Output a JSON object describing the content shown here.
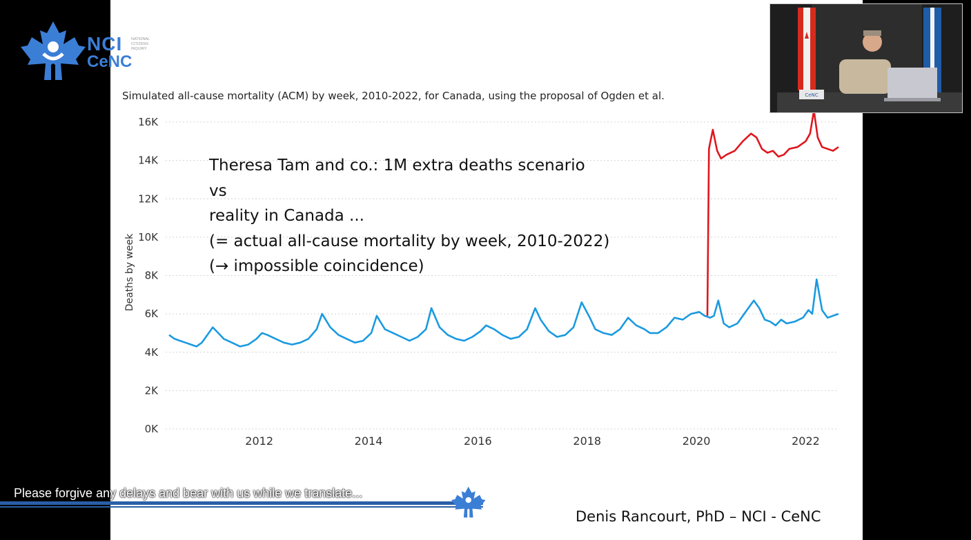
{
  "logo": {
    "nci": "NCI",
    "cenc": "CeNC",
    "small_lines": [
      "NATIONAL",
      "CITIZENS",
      "INQUIRY"
    ]
  },
  "chart_title": "Simulated all-cause mortality (ACM) by week, 2010-2022, for Canada, using the proposal of Ogden et al.",
  "annotation_lines": [
    "Theresa Tam and co.: 1M extra deaths scenario",
    "vs",
    "reality in Canada ...",
    "(= actual all-cause mortality by week, 2010-2022)",
    "(→ impossible coincidence)"
  ],
  "presenter": "Denis Rancourt, PhD  –  NCI - CeNC",
  "ticker_text": "Please forgive any delays and bear with us while we translate...",
  "video": {
    "nameplate": "CeNC"
  },
  "colors": {
    "actual": "#1a9ae0",
    "scenario": "#e0161e",
    "accent": "#3b7ed6"
  },
  "chart_data": {
    "type": "line",
    "title": "Simulated all-cause mortality (ACM) by week, 2010-2022, for Canada, using the proposal of Ogden et al.",
    "xlabel": "",
    "ylabel": "Deaths by week",
    "ylim": [
      0,
      16000
    ],
    "xlim": [
      2010.35,
      2022.6
    ],
    "yticks": [
      0,
      2000,
      4000,
      6000,
      8000,
      10000,
      12000,
      14000,
      16000
    ],
    "ytick_labels": [
      "0K",
      "2K",
      "4K",
      "6K",
      "8K",
      "10K",
      "12K",
      "14K",
      "16K"
    ],
    "xticks": [
      2012,
      2014,
      2016,
      2018,
      2020,
      2022
    ],
    "xtick_labels": [
      "2012",
      "2014",
      "2016",
      "2018",
      "2020",
      "2022"
    ],
    "grid": true,
    "series": [
      {
        "color": "#1a9ae0",
        "x": [
          2010.35,
          2010.45,
          2010.55,
          2010.65,
          2010.75,
          2010.85,
          2010.95,
          2011.05,
          2011.15,
          2011.25,
          2011.35,
          2011.5,
          2011.65,
          2011.8,
          2011.95,
          2012.05,
          2012.15,
          2012.3,
          2012.45,
          2012.6,
          2012.75,
          2012.9,
          2013.05,
          2013.15,
          2013.3,
          2013.45,
          2013.6,
          2013.75,
          2013.9,
          2014.05,
          2014.15,
          2014.3,
          2014.45,
          2014.6,
          2014.75,
          2014.9,
          2015.05,
          2015.15,
          2015.3,
          2015.45,
          2015.6,
          2015.75,
          2015.9,
          2016.05,
          2016.15,
          2016.3,
          2016.45,
          2016.6,
          2016.75,
          2016.9,
          2017.05,
          2017.15,
          2017.3,
          2017.45,
          2017.6,
          2017.75,
          2017.9,
          2018.05,
          2018.15,
          2018.3,
          2018.45,
          2018.6,
          2018.75,
          2018.9,
          2019.05,
          2019.15,
          2019.3,
          2019.45,
          2019.6,
          2019.75,
          2019.9,
          2020.05,
          2020.15,
          2020.25,
          2020.32,
          2020.4,
          2020.5,
          2020.6,
          2020.75,
          2020.9,
          2021.05,
          2021.15,
          2021.25,
          2021.35,
          2021.45,
          2021.55,
          2021.65,
          2021.8,
          2021.95,
          2022.05,
          2022.12,
          2022.2,
          2022.3,
          2022.4,
          2022.5,
          2022.6
        ],
        "y": [
          4900,
          4700,
          4600,
          4500,
          4400,
          4300,
          4500,
          4900,
          5300,
          5000,
          4700,
          4500,
          4300,
          4400,
          4700,
          5000,
          4900,
          4700,
          4500,
          4400,
          4500,
          4700,
          5200,
          6000,
          5300,
          4900,
          4700,
          4500,
          4600,
          5000,
          5900,
          5200,
          5000,
          4800,
          4600,
          4800,
          5200,
          6300,
          5300,
          4900,
          4700,
          4600,
          4800,
          5100,
          5400,
          5200,
          4900,
          4700,
          4800,
          5200,
          6300,
          5700,
          5100,
          4800,
          4900,
          5300,
          6600,
          5800,
          5200,
          5000,
          4900,
          5200,
          5800,
          5400,
          5200,
          5000,
          5000,
          5300,
          5800,
          5700,
          6000,
          6100,
          5900,
          5800,
          5900,
          6700,
          5500,
          5300,
          5500,
          6100,
          6700,
          6300,
          5700,
          5600,
          5400,
          5700,
          5500,
          5600,
          5800,
          6200,
          6000,
          7800,
          6200,
          5800,
          5900,
          6000
        ]
      },
      {
        "color": "#e0161e",
        "x": [
          2020.2,
          2020.23,
          2020.25,
          2020.3,
          2020.38,
          2020.45,
          2020.55,
          2020.7,
          2020.85,
          2021.0,
          2021.1,
          2021.2,
          2021.3,
          2021.4,
          2021.5,
          2021.6,
          2021.7,
          2021.85,
          2022.0,
          2022.08,
          2022.15,
          2022.22,
          2022.3,
          2022.4,
          2022.5,
          2022.6
        ],
        "y": [
          5900,
          14600,
          14900,
          15600,
          14500,
          14100,
          14300,
          14500,
          15000,
          15400,
          15200,
          14600,
          14400,
          14500,
          14200,
          14300,
          14600,
          14700,
          15000,
          15400,
          16600,
          15200,
          14700,
          14600,
          14500,
          14700
        ]
      }
    ]
  }
}
